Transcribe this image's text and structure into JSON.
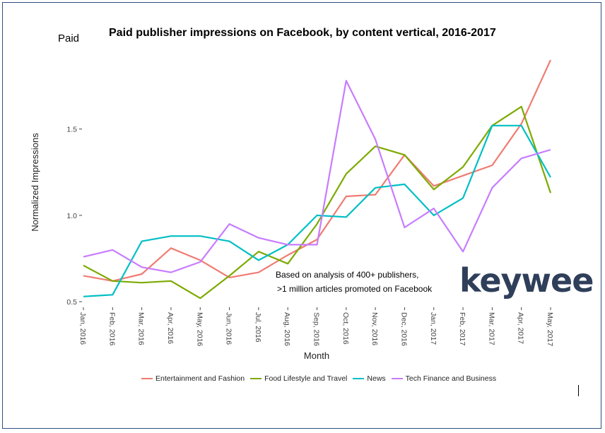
{
  "header": {
    "subtitle": "Paid",
    "title": "Paid publisher impressions on Facebook, by content vertical, 2016-2017"
  },
  "annotation": {
    "line1": "Based on analysis of 400+ publishers,",
    "line2": ">1 million articles promoted on Facebook"
  },
  "logo": {
    "text": "keywee",
    "color": "#2f3f5a"
  },
  "chart_data": {
    "type": "line",
    "title": "Paid publisher impressions on Facebook, by content vertical, 2016-2017",
    "xlabel": "Month",
    "ylabel": "Normalized Impressions",
    "ylim": [
      0.48,
      1.92
    ],
    "yticks": [
      "0.5",
      "1.0",
      "1.5"
    ],
    "categories": [
      "Jan, 2016",
      "Feb, 2016",
      "Mar, 2016",
      "Apr, 2016",
      "May, 2016",
      "Jun, 2016",
      "Jul, 2016",
      "Aug, 2016",
      "Sep, 2016",
      "Oct, 2016",
      "Nov, 2016",
      "Dec, 2016",
      "Jan, 2017",
      "Feb, 2017",
      "Mar, 2017",
      "Apr, 2017",
      "May, 2017"
    ],
    "grid": false,
    "legend_position": "bottom",
    "series": [
      {
        "name": "Entertainment and Fashion",
        "color": "#f07b72",
        "values": [
          0.65,
          0.62,
          0.66,
          0.81,
          0.74,
          0.64,
          0.67,
          0.77,
          0.86,
          1.11,
          1.12,
          1.35,
          1.17,
          1.23,
          1.29,
          1.53,
          1.9
        ]
      },
      {
        "name": "Food Lifestyle and Travel",
        "color": "#7caa00",
        "values": [
          0.71,
          0.62,
          0.61,
          0.62,
          0.52,
          0.65,
          0.79,
          0.72,
          0.95,
          1.24,
          1.4,
          1.35,
          1.15,
          1.28,
          1.52,
          1.63,
          1.13
        ]
      },
      {
        "name": "News",
        "color": "#00bfc4",
        "values": [
          0.53,
          0.54,
          0.85,
          0.88,
          0.88,
          0.85,
          0.74,
          0.83,
          1.0,
          0.99,
          1.16,
          1.18,
          1.0,
          1.1,
          1.52,
          1.52,
          1.22
        ]
      },
      {
        "name": "Tech Finance and Business",
        "color": "#c77cff",
        "values": [
          0.76,
          0.8,
          0.7,
          0.67,
          0.73,
          0.95,
          0.87,
          0.83,
          0.83,
          1.78,
          1.44,
          0.93,
          1.04,
          0.79,
          1.16,
          1.33,
          1.38
        ]
      }
    ]
  }
}
